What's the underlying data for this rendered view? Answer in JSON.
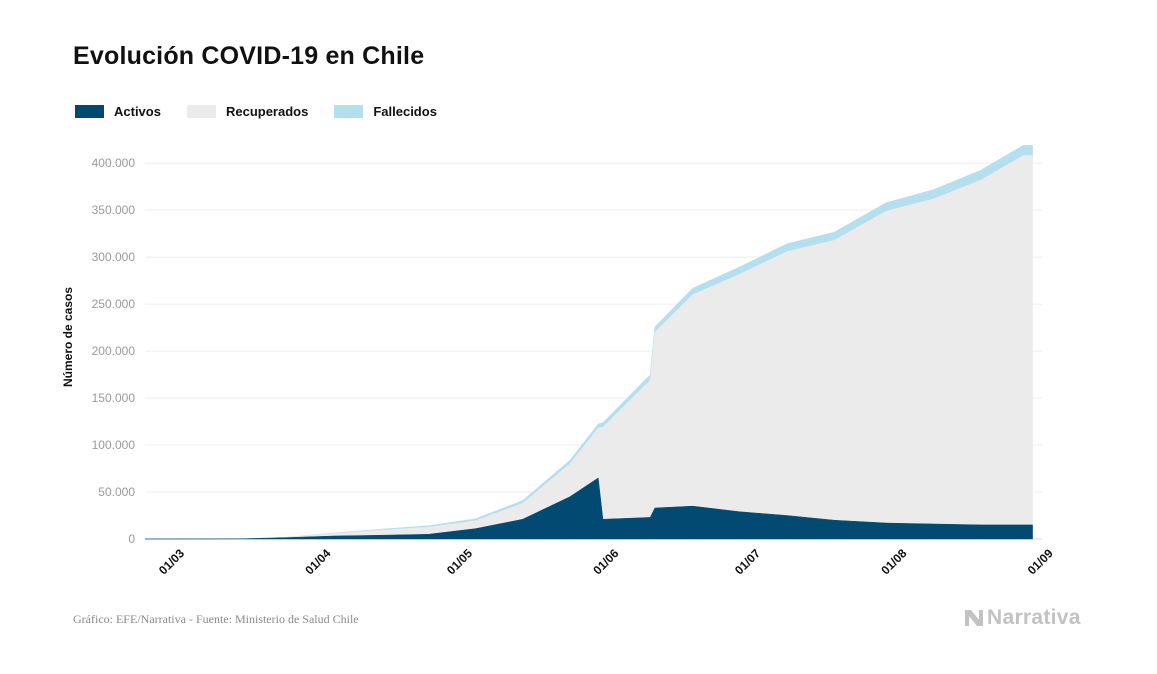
{
  "title": "Evolución COVID-19 en Chile",
  "legend": [
    {
      "label": "Activos",
      "color": "#034a73"
    },
    {
      "label": "Recuperados",
      "color": "#ebebeb"
    },
    {
      "label": "Fallecidos",
      "color": "#b4dfee"
    }
  ],
  "source": "Gráfico: EFE/Narrativa - Fuente: Ministerio de Salud Chile",
  "logo_text": "Narrativa",
  "chart_data": {
    "type": "area",
    "stacked": true,
    "ylabel": "Número de casos",
    "xlabel": "",
    "ylim": [
      0,
      430000
    ],
    "yticks": [
      0,
      50000,
      100000,
      150000,
      200000,
      250000,
      300000,
      350000,
      400000
    ],
    "ytick_labels": [
      "0",
      "50.000",
      "100.000",
      "150.000",
      "200.000",
      "250.000",
      "300.000",
      "350.000",
      "400.000"
    ],
    "xtick_labels": [
      "01/03",
      "01/04",
      "01/05",
      "01/06",
      "01/07",
      "01/08",
      "01/09"
    ],
    "grid": true,
    "legend_position": "top-left",
    "x": [
      "2020-03-01",
      "2020-03-15",
      "2020-03-22",
      "2020-03-31",
      "2020-04-10",
      "2020-04-20",
      "2020-04-30",
      "2020-05-10",
      "2020-05-20",
      "2020-05-30",
      "2020-06-05",
      "2020-06-06",
      "2020-06-16",
      "2020-06-17",
      "2020-06-25",
      "2020-07-05",
      "2020-07-15",
      "2020-07-25",
      "2020-08-05",
      "2020-08-15",
      "2020-08-25",
      "2020-09-03"
    ],
    "series": [
      {
        "name": "Activos",
        "values": [
          0,
          100,
          300,
          1500,
          3200,
          4000,
          5000,
          11000,
          21000,
          45000,
          65000,
          21000,
          23000,
          33000,
          35000,
          29000,
          25000,
          20000,
          17000,
          16000,
          15000,
          15000
        ]
      },
      {
        "name": "Recuperados",
        "values": [
          0,
          0,
          0,
          300,
          2800,
          5500,
          7500,
          8400,
          17000,
          35000,
          53000,
          98000,
          146000,
          187000,
          225000,
          253000,
          281000,
          298000,
          332000,
          346000,
          367000,
          393000
        ]
      },
      {
        "name": "Fallecidos",
        "values": [
          0,
          0,
          0,
          100,
          500,
          1000,
          1600,
          2100,
          3000,
          3800,
          4500,
          4800,
          5800,
          5800,
          7000,
          7700,
          8300,
          8600,
          9000,
          9800,
          10500,
          11000
        ]
      }
    ]
  }
}
